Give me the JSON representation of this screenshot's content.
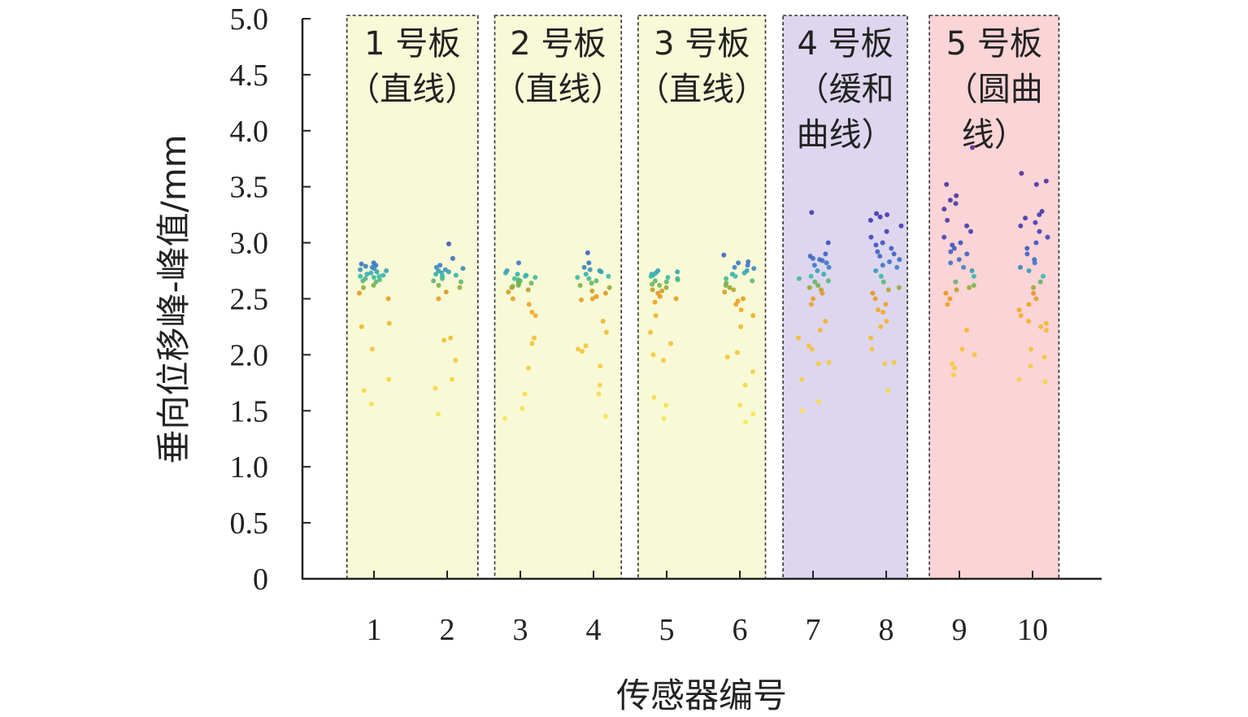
{
  "chart_data": {
    "type": "scatter",
    "title": "",
    "xlabel": "传感器编号",
    "ylabel": "垂向位移峰-峰值/mm",
    "ylim": [
      0,
      5.0
    ],
    "ytick_labels": [
      "0",
      "0.5",
      "1.0",
      "1.5",
      "2.0",
      "2.5",
      "3.0",
      "3.5",
      "4.0",
      "4.5",
      "5.0"
    ],
    "categories": [
      "1",
      "2",
      "3",
      "4",
      "5",
      "6",
      "7",
      "8",
      "9",
      "10"
    ],
    "groups": [
      {
        "label_lines": [
          "1 号板",
          "（直线）"
        ],
        "sensors": [
          1,
          2
        ],
        "x_range": [
          0.63,
          2.42
        ],
        "color": "#f8f9d6"
      },
      {
        "label_lines": [
          "2 号板",
          "（直线）"
        ],
        "sensors": [
          3,
          4
        ],
        "x_range": [
          2.65,
          4.38
        ],
        "color": "#f8f9d6"
      },
      {
        "label_lines": [
          "3 号板",
          "（直线）"
        ],
        "sensors": [
          5,
          6
        ],
        "x_range": [
          4.61,
          6.35
        ],
        "color": "#f8f9d6"
      },
      {
        "label_lines": [
          "4 号板",
          "（缓和",
          "曲线）"
        ],
        "sensors": [
          7,
          8
        ],
        "x_range": [
          6.59,
          8.29
        ],
        "color": "#ddd6ee"
      },
      {
        "label_lines": [
          "5 号板",
          "（圆曲",
          "线）"
        ],
        "sensors": [
          9,
          10
        ],
        "x_range": [
          8.59,
          10.36
        ],
        "color": "#fad4d6"
      }
    ],
    "series": [
      {
        "name": "1",
        "values": [
          2.82,
          2.8,
          2.81,
          2.79,
          2.78,
          2.77,
          2.76,
          2.75,
          2.74,
          2.73,
          2.72,
          2.71,
          2.7,
          2.7,
          2.69,
          2.68,
          2.67,
          2.66,
          2.65,
          2.62,
          2.6,
          2.55,
          2.5,
          2.28,
          2.25,
          2.05,
          1.78,
          1.68,
          1.56
        ]
      },
      {
        "name": "2",
        "values": [
          2.99,
          2.86,
          2.8,
          2.78,
          2.77,
          2.76,
          2.75,
          2.74,
          2.73,
          2.72,
          2.71,
          2.7,
          2.68,
          2.66,
          2.65,
          2.62,
          2.6,
          2.56,
          2.5,
          2.15,
          2.13,
          1.95,
          1.78,
          1.7,
          1.47
        ]
      },
      {
        "name": "3",
        "values": [
          2.82,
          2.75,
          2.73,
          2.72,
          2.71,
          2.7,
          2.69,
          2.68,
          2.67,
          2.66,
          2.65,
          2.64,
          2.63,
          2.62,
          2.61,
          2.6,
          2.58,
          2.56,
          2.5,
          2.45,
          2.38,
          2.35,
          2.15,
          2.1,
          1.88,
          1.65,
          1.52,
          1.43
        ]
      },
      {
        "name": "4",
        "values": [
          2.91,
          2.82,
          2.78,
          2.76,
          2.75,
          2.74,
          2.72,
          2.7,
          2.69,
          2.68,
          2.66,
          2.64,
          2.62,
          2.6,
          2.57,
          2.55,
          2.52,
          2.5,
          2.49,
          2.3,
          2.2,
          2.08,
          2.05,
          2.03,
          1.9,
          1.73,
          1.65,
          1.45
        ]
      },
      {
        "name": "5",
        "values": [
          2.75,
          2.74,
          2.73,
          2.72,
          2.71,
          2.7,
          2.69,
          2.68,
          2.67,
          2.66,
          2.65,
          2.63,
          2.62,
          2.6,
          2.58,
          2.57,
          2.55,
          2.52,
          2.5,
          2.47,
          2.35,
          2.2,
          2.1,
          2.0,
          1.95,
          1.62,
          1.55,
          1.43
        ]
      },
      {
        "name": "6",
        "values": [
          2.89,
          2.83,
          2.82,
          2.8,
          2.78,
          2.77,
          2.75,
          2.73,
          2.72,
          2.7,
          2.68,
          2.66,
          2.64,
          2.62,
          2.6,
          2.58,
          2.56,
          2.5,
          2.48,
          2.45,
          2.4,
          2.35,
          2.25,
          2.02,
          1.98,
          1.85,
          1.73,
          1.55,
          1.47,
          1.4
        ]
      },
      {
        "name": "7",
        "values": [
          3.27,
          3.0,
          2.9,
          2.88,
          2.86,
          2.85,
          2.84,
          2.82,
          2.8,
          2.78,
          2.75,
          2.72,
          2.7,
          2.68,
          2.66,
          2.65,
          2.62,
          2.6,
          2.58,
          2.55,
          2.5,
          2.45,
          2.3,
          2.22,
          2.15,
          2.08,
          2.05,
          1.93,
          1.92,
          1.78,
          1.58,
          1.5
        ]
      },
      {
        "name": "8",
        "values": [
          3.26,
          3.25,
          3.23,
          3.2,
          3.15,
          3.1,
          3.05,
          3.0,
          2.98,
          2.95,
          2.92,
          2.9,
          2.88,
          2.85,
          2.83,
          2.8,
          2.78,
          2.75,
          2.7,
          2.65,
          2.6,
          2.58,
          2.55,
          2.5,
          2.45,
          2.4,
          2.38,
          2.3,
          2.25,
          2.15,
          2.05,
          1.93,
          1.92,
          1.68
        ]
      },
      {
        "name": "9",
        "values": [
          3.85,
          3.52,
          3.42,
          3.38,
          3.35,
          3.3,
          3.2,
          3.15,
          3.1,
          3.05,
          3.0,
          2.98,
          2.95,
          2.92,
          2.9,
          2.85,
          2.82,
          2.78,
          2.75,
          2.7,
          2.65,
          2.62,
          2.6,
          2.58,
          2.55,
          2.5,
          2.45,
          2.22,
          2.05,
          2.0,
          1.92,
          1.88,
          1.82
        ]
      },
      {
        "name": "10",
        "values": [
          3.62,
          3.55,
          3.52,
          3.28,
          3.25,
          3.22,
          3.18,
          3.15,
          3.1,
          3.05,
          3.0,
          2.95,
          2.9,
          2.85,
          2.82,
          2.78,
          2.75,
          2.7,
          2.65,
          2.6,
          2.55,
          2.5,
          2.45,
          2.4,
          2.35,
          2.3,
          2.28,
          2.25,
          2.22,
          2.05,
          1.98,
          1.9,
          1.78,
          1.76
        ]
      }
    ]
  }
}
